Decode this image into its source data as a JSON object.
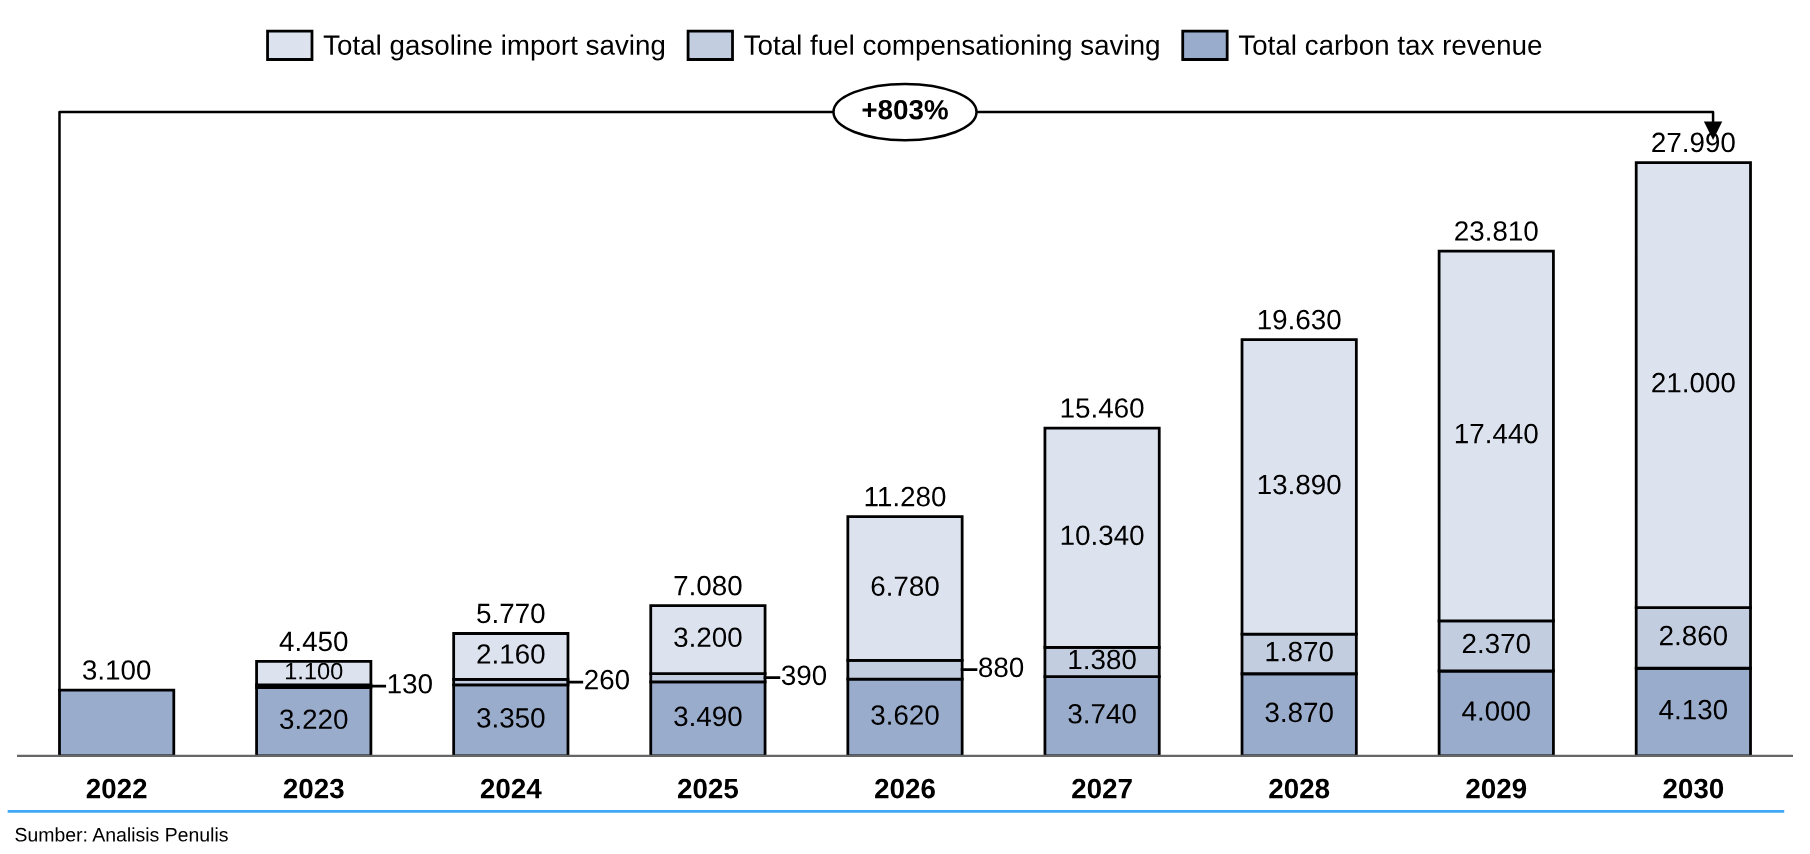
{
  "chart_data": {
    "type": "bar",
    "stacked": true,
    "categories": [
      "2022",
      "2023",
      "2024",
      "2025",
      "2026",
      "2027",
      "2028",
      "2029",
      "2030"
    ],
    "series": [
      {
        "name": "Total carbon tax revenue",
        "color": "#9aaccc",
        "values": [
          3100,
          3220,
          3350,
          3490,
          3620,
          3740,
          3870,
          4000,
          4130
        ],
        "value_labels": [
          null,
          "3.220",
          "3.350",
          "3.490",
          "3.620",
          "3.740",
          "3.870",
          "4.000",
          "4.130"
        ]
      },
      {
        "name": "Total fuel compensationing saving",
        "color": "#c3cde0",
        "values": [
          null,
          130,
          260,
          390,
          880,
          1380,
          1870,
          2370,
          2860
        ],
        "value_labels": [
          null,
          "130",
          "260",
          "390",
          "880",
          "1.380",
          "1.870",
          "2.370",
          "2.860"
        ]
      },
      {
        "name": "Total gasoline import saving",
        "color": "#dde3ee",
        "values": [
          null,
          1100,
          2160,
          3200,
          6780,
          10340,
          13890,
          17440,
          21000
        ],
        "value_labels": [
          null,
          "1.100",
          "2.160",
          "3.200",
          "6.780",
          "10.340",
          "13.890",
          "17.440",
          "21.000"
        ]
      }
    ],
    "totals": [
      "3.100",
      "4.450",
      "5.770",
      "7.080",
      "11.280",
      "15.460",
      "19.630",
      "23.810",
      "27.990"
    ],
    "annotations": [
      "+803%",
      "Sumber: Analisis Penulis"
    ],
    "legend": "top",
    "grid": false
  }
}
